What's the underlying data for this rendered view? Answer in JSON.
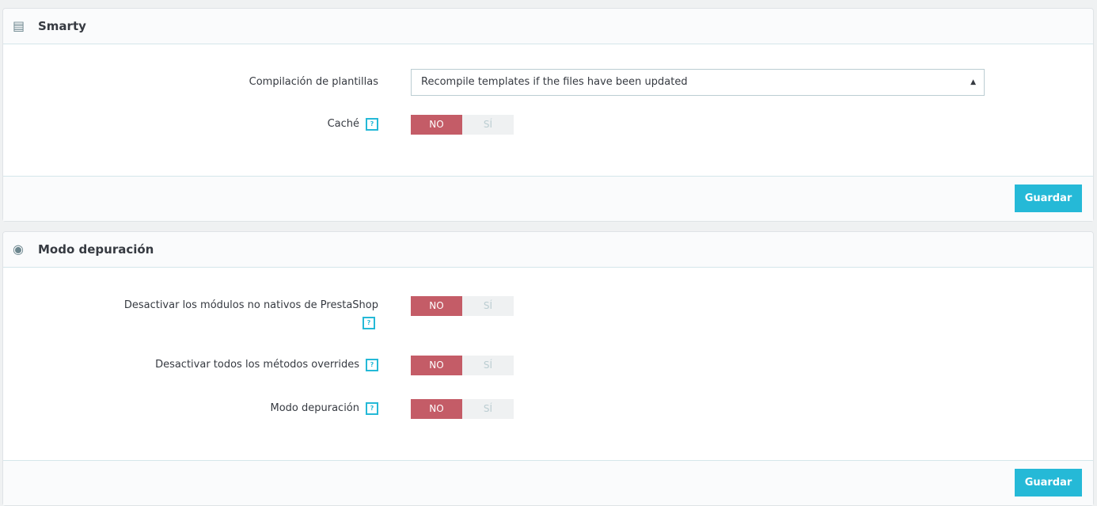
{
  "smarty": {
    "title": "Smarty",
    "icon": "briefcase-icon",
    "compile_label": "Compilación de plantillas",
    "compile_value": "Recompile templates if the files have been updated",
    "cache_label": "Caché",
    "no": "NO",
    "si": "SÍ",
    "cache_value": "NO",
    "save": "Guardar"
  },
  "debug": {
    "title": "Modo depuración",
    "icon": "bug-icon",
    "items": [
      {
        "label": "Desactivar los módulos no nativos de PrestaShop",
        "value": "NO"
      },
      {
        "label": "Desactivar todos los métodos overrides",
        "value": "NO"
      },
      {
        "label": "Modo depuración",
        "value": "NO"
      }
    ],
    "no": "NO",
    "si": "SÍ",
    "save": "Guardar"
  },
  "help": "?",
  "colors": {
    "accent": "#25b9d7",
    "off": "#c45c67"
  }
}
